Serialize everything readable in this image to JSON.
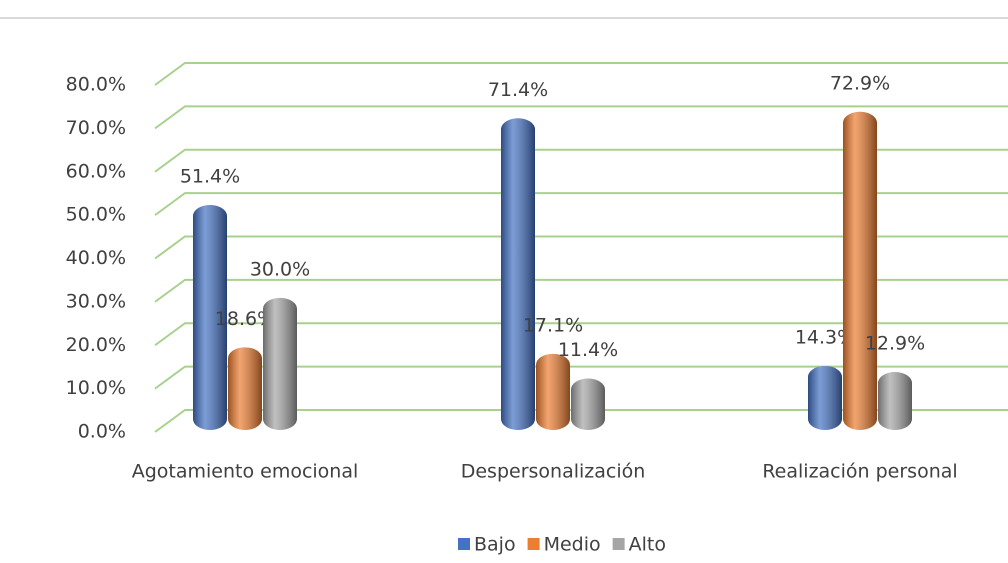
{
  "chart_data": {
    "type": "bar",
    "categories": [
      "Agotamiento emocional",
      "Despersonalización",
      "Realización personal"
    ],
    "series": [
      {
        "name": "Bajo",
        "color": "#4472c4",
        "values": [
          51.4,
          71.4,
          14.3
        ],
        "value_labels": [
          "51.4%",
          "71.4%",
          "14.3%"
        ]
      },
      {
        "name": "Medio",
        "color": "#ed7d31",
        "values": [
          18.6,
          17.1,
          72.9
        ],
        "value_labels": [
          "18.6%",
          "17.1%",
          "72.9%"
        ]
      },
      {
        "name": "Alto",
        "color": "#a5a5a5",
        "values": [
          30.0,
          11.4,
          12.9
        ],
        "value_labels": [
          "30.0%",
          "11.4%",
          "12.9%"
        ]
      }
    ],
    "ylim": [
      0,
      80
    ],
    "yticks": [
      {
        "value": 0,
        "label": "0.0%"
      },
      {
        "value": 10,
        "label": "10.0%"
      },
      {
        "value": 20,
        "label": "20.0%"
      },
      {
        "value": 30,
        "label": "30.0%"
      },
      {
        "value": 40,
        "label": "40.0%"
      },
      {
        "value": 50,
        "label": "50.0%"
      },
      {
        "value": 60,
        "label": "60.0%"
      },
      {
        "value": 70,
        "label": "70.0%"
      },
      {
        "value": 80,
        "label": "80.0%"
      }
    ],
    "grid": true,
    "grid_color": "#a9d18e",
    "legend": "bottom"
  }
}
